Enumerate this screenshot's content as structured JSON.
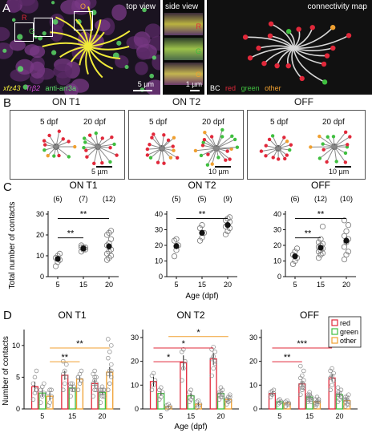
{
  "panel_labels": [
    "A",
    "B",
    "C",
    "D"
  ],
  "panelA": {
    "top_view": {
      "title": "top view",
      "box_labels": [
        "R",
        "G",
        "O"
      ],
      "scalebar": "5 µm",
      "legend": [
        {
          "text": "xfz43",
          "color": "#f0ea3a"
        },
        {
          "text": "Trβ2",
          "color": "#d24bd8"
        },
        {
          "text": "anti-arr3a",
          "color": "#5ee36a"
        }
      ]
    },
    "side_view": {
      "title": "side view",
      "box_labels": [
        "R",
        "G",
        "O"
      ],
      "scalebar": "1 µm"
    },
    "connectivity_map": {
      "title": "connectivity map",
      "legend": [
        {
          "text": "BC",
          "color": "#ffffff"
        },
        {
          "text": "red",
          "color": "#e1283a"
        },
        {
          "text": "green",
          "color": "#3fbf3f"
        },
        {
          "text": "other",
          "color": "#f0a030"
        }
      ]
    }
  },
  "panelB": {
    "groups": [
      {
        "title": "ON T1",
        "ages": [
          "5 dpf",
          "20 dpf"
        ],
        "scalebar": "5 µm"
      },
      {
        "title": "ON T2",
        "ages": [
          "5 dpf",
          "20 dpf"
        ],
        "scalebar": "10 µm"
      },
      {
        "title": "OFF",
        "ages": [
          "5 dpf",
          "20 dpf"
        ],
        "scalebar": "10 µm"
      }
    ]
  },
  "chart_data": [
    {
      "id": "C-ON-T1",
      "type": "scatter",
      "title": "ON T1",
      "ylabel": "Total number of contacts",
      "xlabel": "",
      "categories": [
        "5",
        "15",
        "20"
      ],
      "n_labels": [
        "(6)",
        "(7)",
        "(12)"
      ],
      "ylim": [
        0,
        30
      ],
      "yticks": [
        0,
        10,
        20,
        30
      ],
      "means": [
        8.5,
        13.5,
        14.5
      ],
      "sems": [
        1.0,
        0.5,
        1.5
      ],
      "points": [
        [
          5,
          7,
          8,
          9,
          10,
          11
        ],
        [
          12,
          13,
          13,
          14,
          14,
          14,
          15
        ],
        [
          8,
          9,
          10,
          11,
          12,
          13,
          15,
          16,
          18,
          20,
          21,
          22
        ]
      ],
      "sig": [
        {
          "from": "5",
          "to": "15",
          "label": "**"
        },
        {
          "from": "5",
          "to": "20",
          "label": "**"
        }
      ]
    },
    {
      "id": "C-ON-T2",
      "type": "scatter",
      "title": "ON T2",
      "ylabel": "",
      "xlabel": "Age (dpf)",
      "categories": [
        "5",
        "15",
        "20"
      ],
      "n_labels": [
        "(5)",
        "(5)",
        "(9)"
      ],
      "ylim": [
        0,
        40
      ],
      "yticks": [
        0,
        10,
        20,
        30,
        40
      ],
      "means": [
        19.5,
        28,
        33
      ],
      "sems": [
        2.0,
        1.5,
        1.5
      ],
      "points": [
        [
          13,
          17,
          20,
          23,
          24
        ],
        [
          23,
          25,
          28,
          31,
          33
        ],
        [
          27,
          29,
          31,
          32,
          33,
          35,
          36,
          37,
          38
        ]
      ],
      "sig": [
        {
          "from": "5",
          "to": "20",
          "label": "**"
        }
      ]
    },
    {
      "id": "C-OFF",
      "type": "scatter",
      "title": "OFF",
      "ylabel": "",
      "xlabel": "",
      "categories": [
        "5",
        "15",
        "20"
      ],
      "n_labels": [
        "(6)",
        "(12)",
        "(10)"
      ],
      "ylim": [
        0,
        40
      ],
      "yticks": [
        0,
        10,
        20,
        30,
        40
      ],
      "means": [
        13,
        18.5,
        23
      ],
      "sems": [
        1.5,
        1.5,
        2.5
      ],
      "points": [
        [
          8,
          10,
          12,
          14,
          16,
          18
        ],
        [
          12,
          14,
          15,
          16,
          17,
          18,
          19,
          20,
          21,
          22,
          24,
          32
        ],
        [
          11,
          14,
          16,
          19,
          22,
          24,
          26,
          29,
          33,
          36
        ]
      ],
      "sig": [
        {
          "from": "5",
          "to": "15",
          "label": "**"
        },
        {
          "from": "5",
          "to": "20",
          "label": "**"
        }
      ]
    },
    {
      "id": "D-ON-T1",
      "type": "bar",
      "title": "ON T1",
      "ylabel": "Number of contacts",
      "xlabel": "",
      "categories": [
        "5",
        "15",
        "20"
      ],
      "ylim": [
        0,
        12
      ],
      "yticks": [
        0,
        5,
        10
      ],
      "series": [
        {
          "name": "red",
          "color": "#e1283a",
          "values": [
            3.5,
            5.3,
            4.0
          ],
          "sems": [
            0.8,
            0.7,
            0.6
          ],
          "points": [
            [
              1.5,
              2.5,
              3,
              4,
              5,
              6
            ],
            [
              3,
              4,
              5,
              5.5,
              6,
              7,
              7.5
            ],
            [
              2,
              3,
              3.5,
              4,
              4.5,
              5,
              5.5,
              6,
              3,
              4,
              5,
              4
            ]
          ]
        },
        {
          "name": "green",
          "color": "#3fbf3f",
          "values": [
            2.5,
            3.3,
            2.6
          ],
          "sems": [
            0.6,
            0.5,
            0.4
          ],
          "points": [
            [
              1,
              2,
              2.5,
              3,
              3.5,
              4
            ],
            [
              2,
              3,
              3.5,
              4,
              4,
              3,
              3.5
            ],
            [
              1,
              2,
              2,
              3,
              3,
              3,
              2.5,
              3.5,
              2,
              3,
              2.5,
              3
            ]
          ]
        },
        {
          "name": "other",
          "color": "#f0a030",
          "values": [
            2.0,
            4.7,
            5.8
          ],
          "sems": [
            0.6,
            0.5,
            0.8
          ],
          "points": [
            [
              0.5,
              1,
              2,
              2.5,
              3,
              3
            ],
            [
              3,
              4,
              4.5,
              5,
              5.5,
              6,
              5
            ],
            [
              3,
              4,
              5,
              5.5,
              6,
              7,
              8,
              9,
              10,
              11,
              4,
              6
            ]
          ]
        }
      ],
      "sig": [
        {
          "from": "5",
          "to": "15",
          "series": "other",
          "label": "**"
        },
        {
          "from": "5",
          "to": "20",
          "series": "other",
          "label": "**"
        }
      ]
    },
    {
      "id": "D-ON-T2",
      "type": "bar",
      "title": "ON T2",
      "ylabel": "",
      "xlabel": "Age (dpf)",
      "categories": [
        "5",
        "15",
        "20"
      ],
      "ylim": [
        0,
        32
      ],
      "yticks": [
        0,
        10,
        20,
        30
      ],
      "series": [
        {
          "name": "red",
          "color": "#e1283a",
          "values": [
            11.5,
            19.5,
            21.0
          ],
          "sems": [
            2.0,
            3.0,
            2.5
          ],
          "points": [
            [
              8,
              10,
              12,
              14,
              15
            ],
            [
              12,
              17,
              20,
              24,
              25
            ],
            [
              14,
              17,
              19,
              21,
              22,
              24,
              25,
              26,
              20
            ]
          ]
        },
        {
          "name": "green",
          "color": "#3fbf3f",
          "values": [
            6.5,
            5.5,
            6.5
          ],
          "sems": [
            1.0,
            1.2,
            0.8
          ],
          "points": [
            [
              4,
              5,
              7,
              8,
              9
            ],
            [
              3,
              4,
              5,
              7,
              8
            ],
            [
              4,
              5,
              6,
              7,
              7,
              8,
              6,
              9,
              5
            ]
          ]
        },
        {
          "name": "other",
          "color": "#f0a030",
          "values": [
            1.0,
            2.0,
            4.0
          ],
          "sems": [
            0.5,
            0.8,
            0.8
          ],
          "points": [
            [
              0,
              0.5,
              1,
              1.5,
              2
            ],
            [
              0.5,
              1,
              2,
              3,
              3.5
            ],
            [
              2,
              3,
              3.5,
              4,
              5,
              6,
              4,
              3,
              5
            ]
          ]
        }
      ],
      "sig": [
        {
          "from": "5",
          "to": "15",
          "series": "red",
          "label": "*"
        },
        {
          "from": "5",
          "to": "20",
          "series": "red",
          "label": "*"
        },
        {
          "from": "5",
          "to": "20",
          "series": "other",
          "label": "*"
        }
      ]
    },
    {
      "id": "D-OFF",
      "type": "bar",
      "title": "OFF",
      "ylabel": "",
      "xlabel": "",
      "categories": [
        "5",
        "15",
        "20"
      ],
      "ylim": [
        0,
        32
      ],
      "yticks": [
        0,
        10,
        20,
        30
      ],
      "series": [
        {
          "name": "red",
          "color": "#e1283a",
          "values": [
            6.5,
            10.5,
            13.0
          ],
          "sems": [
            0.8,
            1.2,
            1.5
          ],
          "points": [
            [
              5,
              6,
              6.5,
              7,
              7.5,
              8
            ],
            [
              6,
              8,
              9,
              10,
              11,
              12,
              13,
              14,
              16,
              18,
              9,
              10
            ],
            [
              8,
              10,
              12,
              13,
              14,
              15,
              16,
              17,
              12,
              13
            ]
          ]
        },
        {
          "name": "green",
          "color": "#3fbf3f",
          "values": [
            3.0,
            5.0,
            6.0
          ],
          "sems": [
            0.6,
            0.8,
            1.0
          ],
          "points": [
            [
              2,
              2.5,
              3,
              3.5,
              4,
              3
            ],
            [
              3,
              4,
              5,
              6,
              7,
              5,
              4,
              6,
              3,
              5,
              6,
              4
            ],
            [
              3,
              4,
              5,
              6,
              7,
              8,
              9,
              6,
              5,
              7
            ]
          ]
        },
        {
          "name": "other",
          "color": "#f0a030",
          "values": [
            2.5,
            3.0,
            3.5
          ],
          "sems": [
            0.6,
            0.6,
            0.8
          ],
          "points": [
            [
              1,
              2,
              2.5,
              3,
              3.5,
              2
            ],
            [
              1,
              2,
              3,
              4,
              5,
              3,
              2,
              3,
              4,
              2,
              3,
              4
            ],
            [
              1,
              2,
              3,
              4,
              5,
              6,
              3,
              4,
              2,
              5
            ]
          ]
        }
      ],
      "sig": [
        {
          "from": "5",
          "to": "15",
          "series": "red",
          "label": "**"
        },
        {
          "from": "5",
          "to": "20",
          "series": "red",
          "label": "***"
        }
      ],
      "legend": [
        "red",
        "green",
        "other"
      ]
    }
  ]
}
